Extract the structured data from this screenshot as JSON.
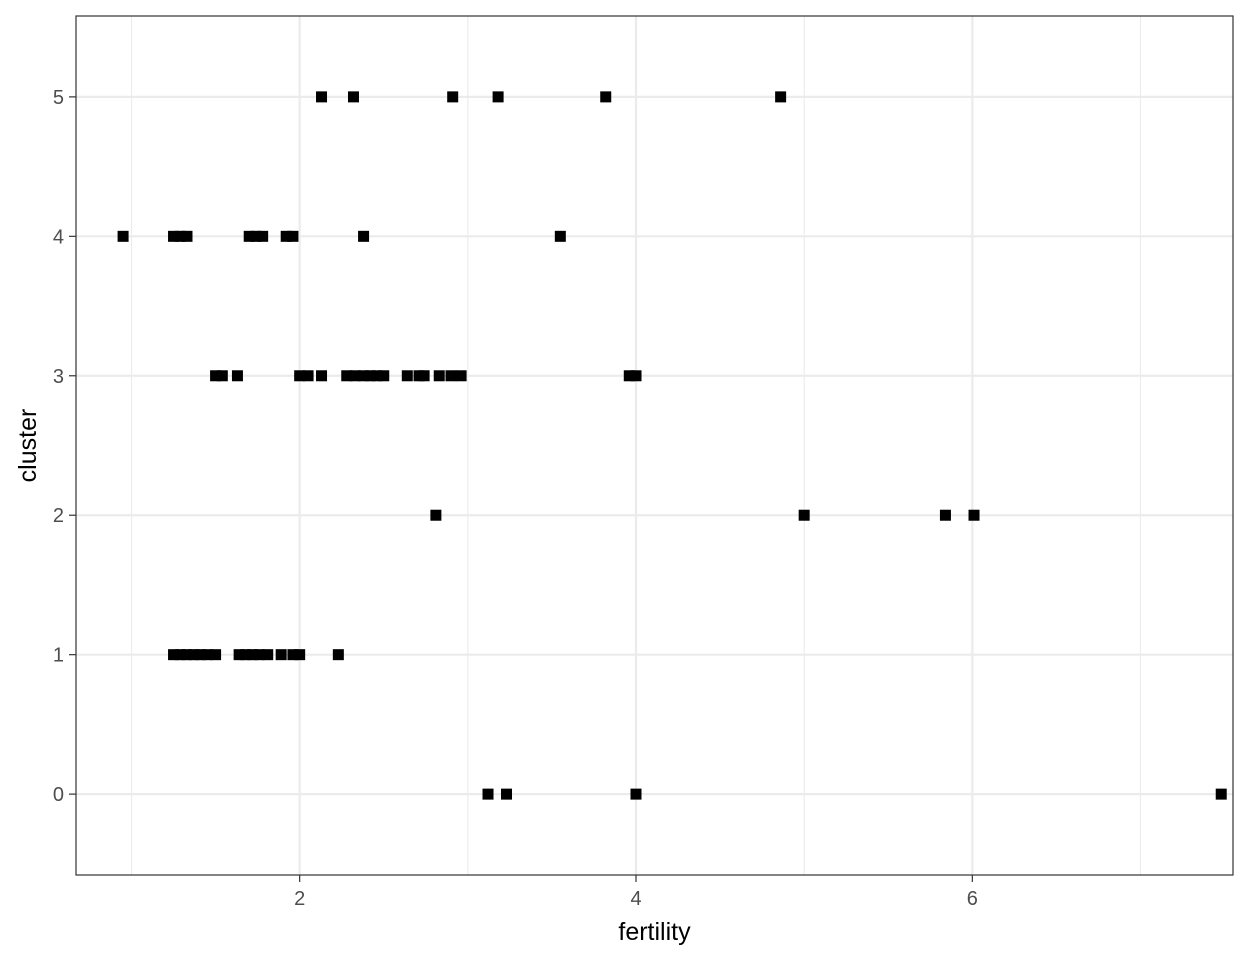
{
  "chart_data": {
    "type": "scatter",
    "xlabel": "fertility",
    "ylabel": "cluster",
    "xlim": [
      0.67,
      7.55
    ],
    "ylim": [
      -0.58,
      5.58
    ],
    "x_ticks": [
      2,
      4,
      6
    ],
    "x_tick_labels": [
      "2",
      "4",
      "6"
    ],
    "y_ticks": [
      0,
      1,
      2,
      3,
      4,
      5
    ],
    "y_tick_labels": [
      "0",
      "1",
      "2",
      "3",
      "4",
      "5"
    ],
    "x_minor_gridlines": [
      1,
      3,
      5,
      7
    ],
    "grid": true,
    "marker": "square",
    "marker_color": "#000000",
    "points": [
      {
        "x": 2.13,
        "y": 5
      },
      {
        "x": 2.32,
        "y": 5
      },
      {
        "x": 2.91,
        "y": 5
      },
      {
        "x": 3.18,
        "y": 5
      },
      {
        "x": 3.82,
        "y": 5
      },
      {
        "x": 4.86,
        "y": 5
      },
      {
        "x": 0.95,
        "y": 4
      },
      {
        "x": 1.25,
        "y": 4
      },
      {
        "x": 1.29,
        "y": 4
      },
      {
        "x": 1.33,
        "y": 4
      },
      {
        "x": 1.7,
        "y": 4
      },
      {
        "x": 1.74,
        "y": 4
      },
      {
        "x": 1.78,
        "y": 4
      },
      {
        "x": 1.92,
        "y": 4
      },
      {
        "x": 1.96,
        "y": 4
      },
      {
        "x": 2.38,
        "y": 4
      },
      {
        "x": 3.55,
        "y": 4
      },
      {
        "x": 1.5,
        "y": 3
      },
      {
        "x": 1.54,
        "y": 3
      },
      {
        "x": 1.63,
        "y": 3
      },
      {
        "x": 2.0,
        "y": 3
      },
      {
        "x": 2.05,
        "y": 3
      },
      {
        "x": 2.13,
        "y": 3
      },
      {
        "x": 2.28,
        "y": 3
      },
      {
        "x": 2.33,
        "y": 3
      },
      {
        "x": 2.38,
        "y": 3
      },
      {
        "x": 2.42,
        "y": 3
      },
      {
        "x": 2.46,
        "y": 3
      },
      {
        "x": 2.5,
        "y": 3
      },
      {
        "x": 2.64,
        "y": 3
      },
      {
        "x": 2.71,
        "y": 3
      },
      {
        "x": 2.74,
        "y": 3
      },
      {
        "x": 2.83,
        "y": 3
      },
      {
        "x": 2.9,
        "y": 3
      },
      {
        "x": 2.96,
        "y": 3
      },
      {
        "x": 3.96,
        "y": 3
      },
      {
        "x": 4.0,
        "y": 3
      },
      {
        "x": 2.81,
        "y": 2
      },
      {
        "x": 5.0,
        "y": 2
      },
      {
        "x": 5.84,
        "y": 2
      },
      {
        "x": 6.01,
        "y": 2
      },
      {
        "x": 1.25,
        "y": 1
      },
      {
        "x": 1.29,
        "y": 1
      },
      {
        "x": 1.33,
        "y": 1
      },
      {
        "x": 1.37,
        "y": 1
      },
      {
        "x": 1.41,
        "y": 1
      },
      {
        "x": 1.45,
        "y": 1
      },
      {
        "x": 1.5,
        "y": 1
      },
      {
        "x": 1.64,
        "y": 1
      },
      {
        "x": 1.68,
        "y": 1
      },
      {
        "x": 1.72,
        "y": 1
      },
      {
        "x": 1.76,
        "y": 1
      },
      {
        "x": 1.81,
        "y": 1
      },
      {
        "x": 1.89,
        "y": 1
      },
      {
        "x": 1.96,
        "y": 1
      },
      {
        "x": 2.0,
        "y": 1
      },
      {
        "x": 2.23,
        "y": 1
      },
      {
        "x": 3.12,
        "y": 0
      },
      {
        "x": 3.23,
        "y": 0
      },
      {
        "x": 4.0,
        "y": 0
      },
      {
        "x": 7.48,
        "y": 0
      }
    ]
  }
}
